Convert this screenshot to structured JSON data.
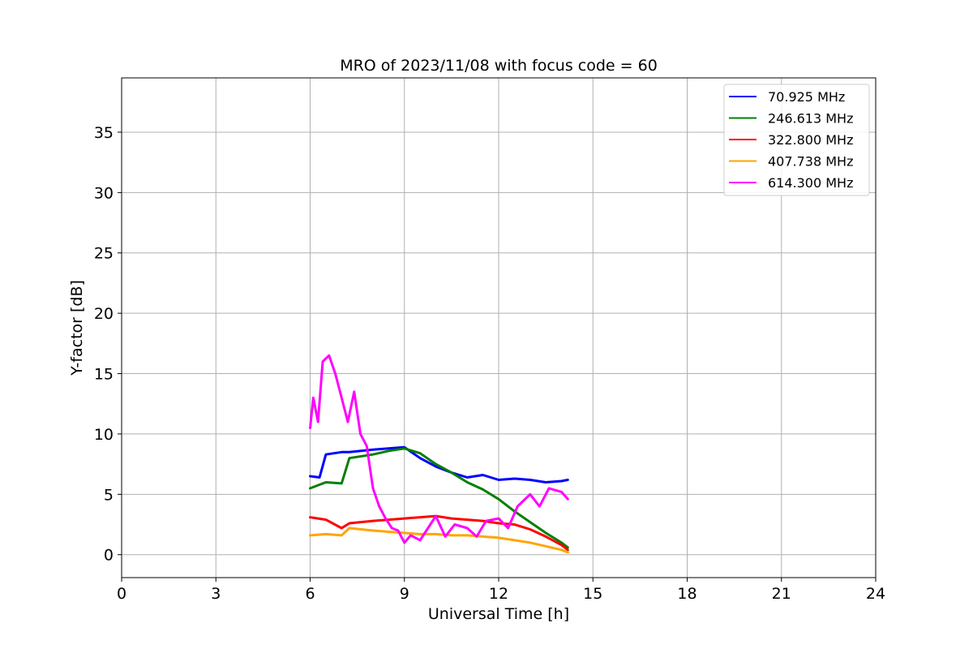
{
  "chart_data": {
    "type": "line",
    "title": "MRO of 2023/11/08 with focus code = 60",
    "xlabel": "Universal Time [h]",
    "ylabel": "Y-factor [dB]",
    "xlim": [
      0,
      24
    ],
    "ylim": [
      -1.9,
      39.5
    ],
    "xticks": [
      0,
      3,
      6,
      9,
      12,
      15,
      18,
      21,
      24
    ],
    "yticks": [
      0,
      5,
      10,
      15,
      20,
      25,
      30,
      35
    ],
    "grid": true,
    "legend_position": "top-right",
    "series": [
      {
        "name": " 70.925 MHz",
        "color": "#0000ff",
        "points": [
          [
            6.0,
            6.5
          ],
          [
            6.3,
            6.4
          ],
          [
            6.5,
            8.3
          ],
          [
            7.0,
            8.5
          ],
          [
            7.25,
            8.5
          ],
          [
            8.0,
            8.7
          ],
          [
            8.5,
            8.8
          ],
          [
            9.0,
            8.9
          ],
          [
            9.5,
            8.0
          ],
          [
            10.0,
            7.3
          ],
          [
            10.5,
            6.8
          ],
          [
            11.0,
            6.4
          ],
          [
            11.5,
            6.6
          ],
          [
            12.0,
            6.2
          ],
          [
            12.5,
            6.3
          ],
          [
            13.0,
            6.2
          ],
          [
            13.5,
            6.0
          ],
          [
            14.0,
            6.1
          ],
          [
            14.2,
            6.2
          ]
        ]
      },
      {
        "name": "246.613 MHz",
        "color": "#008000",
        "points": [
          [
            6.0,
            5.5
          ],
          [
            6.5,
            6.0
          ],
          [
            7.0,
            5.9
          ],
          [
            7.25,
            8.0
          ],
          [
            8.0,
            8.3
          ],
          [
            8.5,
            8.6
          ],
          [
            9.0,
            8.8
          ],
          [
            9.5,
            8.4
          ],
          [
            10.0,
            7.5
          ],
          [
            10.5,
            6.8
          ],
          [
            11.0,
            6.0
          ],
          [
            11.5,
            5.4
          ],
          [
            12.0,
            4.6
          ],
          [
            12.5,
            3.6
          ],
          [
            13.0,
            2.7
          ],
          [
            13.5,
            1.8
          ],
          [
            14.0,
            1.0
          ],
          [
            14.2,
            0.6
          ]
        ]
      },
      {
        "name": "322.800 MHz",
        "color": "#ff0000",
        "points": [
          [
            6.0,
            3.1
          ],
          [
            6.5,
            2.9
          ],
          [
            7.0,
            2.2
          ],
          [
            7.25,
            2.6
          ],
          [
            8.0,
            2.8
          ],
          [
            8.5,
            2.9
          ],
          [
            9.0,
            3.0
          ],
          [
            9.5,
            3.1
          ],
          [
            10.0,
            3.2
          ],
          [
            10.5,
            3.0
          ],
          [
            11.0,
            2.9
          ],
          [
            11.5,
            2.8
          ],
          [
            12.0,
            2.6
          ],
          [
            12.5,
            2.5
          ],
          [
            13.0,
            2.1
          ],
          [
            13.5,
            1.5
          ],
          [
            14.0,
            0.8
          ],
          [
            14.2,
            0.4
          ]
        ]
      },
      {
        "name": "407.738 MHz",
        "color": "#ffa500",
        "points": [
          [
            6.0,
            1.6
          ],
          [
            6.5,
            1.7
          ],
          [
            7.0,
            1.6
          ],
          [
            7.25,
            2.2
          ],
          [
            8.0,
            2.0
          ],
          [
            8.5,
            1.9
          ],
          [
            9.0,
            1.8
          ],
          [
            9.5,
            1.7
          ],
          [
            10.0,
            1.7
          ],
          [
            10.5,
            1.6
          ],
          [
            11.0,
            1.6
          ],
          [
            11.5,
            1.5
          ],
          [
            12.0,
            1.4
          ],
          [
            12.5,
            1.2
          ],
          [
            13.0,
            1.0
          ],
          [
            13.5,
            0.7
          ],
          [
            14.0,
            0.4
          ],
          [
            14.2,
            0.2
          ]
        ]
      },
      {
        "name": "614.300 MHz",
        "color": "#ff00ff",
        "points": [
          [
            6.0,
            10.5
          ],
          [
            6.1,
            13.0
          ],
          [
            6.25,
            11.0
          ],
          [
            6.4,
            16.0
          ],
          [
            6.6,
            16.5
          ],
          [
            6.8,
            15.0
          ],
          [
            7.0,
            13.0
          ],
          [
            7.2,
            11.0
          ],
          [
            7.4,
            13.5
          ],
          [
            7.6,
            10.0
          ],
          [
            7.8,
            9.0
          ],
          [
            8.0,
            5.5
          ],
          [
            8.2,
            4.0
          ],
          [
            8.4,
            3.0
          ],
          [
            8.6,
            2.2
          ],
          [
            8.8,
            2.0
          ],
          [
            9.0,
            1.0
          ],
          [
            9.2,
            1.6
          ],
          [
            9.5,
            1.2
          ],
          [
            9.8,
            2.4
          ],
          [
            10.0,
            3.2
          ],
          [
            10.3,
            1.5
          ],
          [
            10.6,
            2.5
          ],
          [
            11.0,
            2.2
          ],
          [
            11.3,
            1.5
          ],
          [
            11.6,
            2.8
          ],
          [
            12.0,
            3.0
          ],
          [
            12.3,
            2.2
          ],
          [
            12.6,
            4.0
          ],
          [
            13.0,
            5.0
          ],
          [
            13.3,
            4.0
          ],
          [
            13.6,
            5.5
          ],
          [
            14.0,
            5.2
          ],
          [
            14.2,
            4.6
          ]
        ]
      }
    ]
  }
}
